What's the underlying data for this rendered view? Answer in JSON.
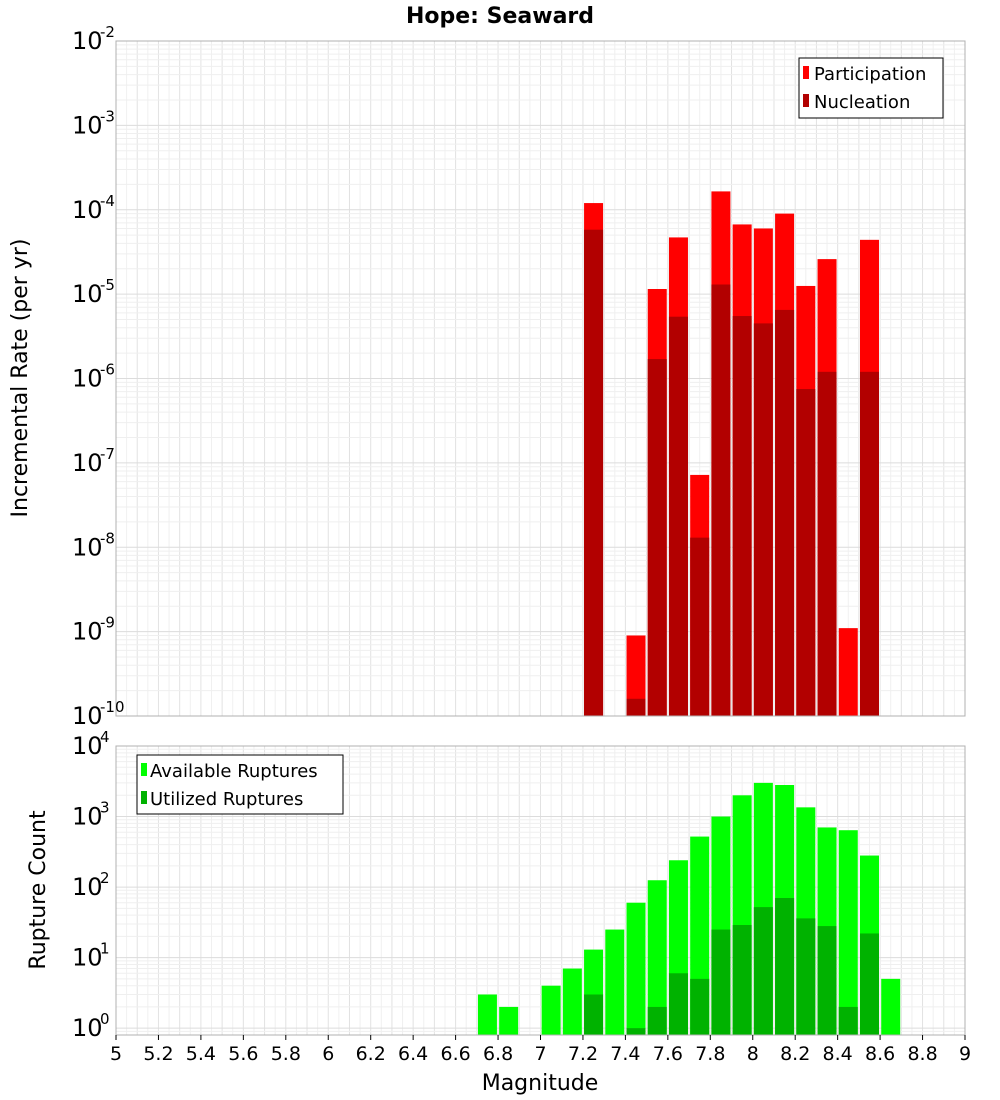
{
  "chart_data": [
    {
      "type": "bar",
      "title": "Hope: Seaward",
      "xlabel": "",
      "ylabel": "Incremental Rate (per yr)",
      "xlim": [
        5,
        9
      ],
      "ylim": [
        1e-10,
        0.01
      ],
      "yscale": "log",
      "ytick_base": "10",
      "ytick_exponents": [
        "-10",
        "-9",
        "-8",
        "-7",
        "-6",
        "-5",
        "-4",
        "-3",
        "-2"
      ],
      "grid": true,
      "legend_position": "top-right",
      "colors": {
        "Participation": "#ff0000",
        "Nucleation": "#b20000"
      },
      "series": [
        {
          "name": "Participation",
          "x": [
            7.25,
            7.45,
            7.55,
            7.65,
            7.75,
            7.85,
            7.95,
            8.05,
            8.15,
            8.25,
            8.35,
            8.45,
            8.55
          ],
          "values": [
            0.00012,
            9e-10,
            1.15e-05,
            4.7e-05,
            7.2e-08,
            0.000165,
            6.7e-05,
            6e-05,
            9e-05,
            1.25e-05,
            2.6e-05,
            1.1e-09,
            4.4e-05
          ]
        },
        {
          "name": "Nucleation",
          "x": [
            7.25,
            7.45,
            7.55,
            7.65,
            7.75,
            7.85,
            7.95,
            8.05,
            8.15,
            8.25,
            8.35,
            8.55
          ],
          "values": [
            5.8e-05,
            1.6e-10,
            1.7e-06,
            5.4e-06,
            1.3e-08,
            1.3e-05,
            5.5e-06,
            4.5e-06,
            6.5e-06,
            7.5e-07,
            1.2e-06,
            1.2e-06
          ]
        }
      ]
    },
    {
      "type": "bar",
      "title": "",
      "xlabel": "Magnitude",
      "ylabel": "Rupture Count",
      "xlim": [
        5,
        9
      ],
      "ylim": [
        0.8,
        10000
      ],
      "yscale": "log",
      "ytick_base": "10",
      "ytick_exponents": [
        "0",
        "1",
        "2",
        "3",
        "4"
      ],
      "xticks": [
        "5",
        "5.2",
        "5.4",
        "5.6",
        "5.8",
        "6",
        "6.2",
        "6.4",
        "6.6",
        "6.8",
        "7",
        "7.2",
        "7.4",
        "7.6",
        "7.8",
        "8",
        "8.2",
        "8.4",
        "8.6",
        "8.8",
        "9"
      ],
      "grid": true,
      "legend_position": "top-left",
      "colors": {
        "Available Ruptures": "#00ff00",
        "Utilized Ruptures": "#00b200"
      },
      "series": [
        {
          "name": "Available Ruptures",
          "x": [
            6.75,
            6.85,
            7.05,
            7.15,
            7.25,
            7.35,
            7.45,
            7.55,
            7.65,
            7.75,
            7.85,
            7.95,
            8.05,
            8.15,
            8.25,
            8.35,
            8.45,
            8.55,
            8.65
          ],
          "values": [
            3,
            2,
            4,
            7,
            13,
            25,
            60,
            125,
            240,
            520,
            1000,
            2000,
            3000,
            2800,
            1350,
            700,
            640,
            280,
            5
          ]
        },
        {
          "name": "Utilized Ruptures",
          "x": [
            7.25,
            7.45,
            7.55,
            7.65,
            7.75,
            7.85,
            7.95,
            8.05,
            8.15,
            8.25,
            8.35,
            8.45,
            8.55
          ],
          "values": [
            3,
            1,
            2,
            6,
            5,
            25,
            29,
            52,
            70,
            36,
            28,
            2,
            22
          ]
        }
      ]
    }
  ]
}
